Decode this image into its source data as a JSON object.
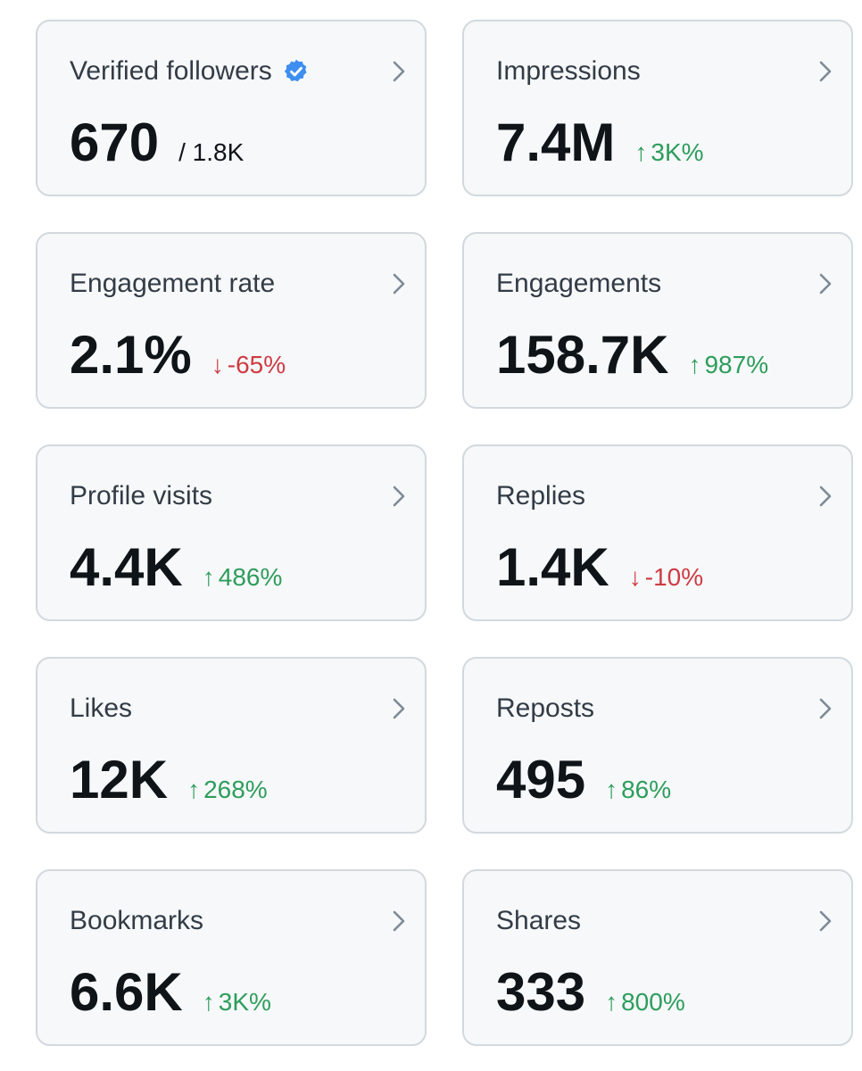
{
  "colors": {
    "card_bg": "#f6f8f9",
    "card_border": "#d2d9de",
    "title_text": "#333c46",
    "value_text": "#0f1419",
    "up": "#2e9d5c",
    "down": "#cf3b43",
    "verified": "#3d8ef0",
    "chevron": "#7d8a96"
  },
  "cards": [
    {
      "title": "Verified followers",
      "value": "670",
      "total": "/ 1.8K",
      "verified_icon": "verified-badge-icon"
    },
    {
      "title": "Impressions",
      "value": "7.4M",
      "direction": "up",
      "arrow": "↑",
      "change": "3K%"
    },
    {
      "title": "Engagement rate",
      "value": "2.1%",
      "direction": "down",
      "arrow": "↓",
      "change": "-65%"
    },
    {
      "title": "Engagements",
      "value": "158.7K",
      "direction": "up",
      "arrow": "↑",
      "change": "987%"
    },
    {
      "title": "Profile visits",
      "value": "4.4K",
      "direction": "up",
      "arrow": "↑",
      "change": "486%"
    },
    {
      "title": "Replies",
      "value": "1.4K",
      "direction": "down",
      "arrow": "↓",
      "change": "-10%"
    },
    {
      "title": "Likes",
      "value": "12K",
      "direction": "up",
      "arrow": "↑",
      "change": "268%"
    },
    {
      "title": "Reposts",
      "value": "495",
      "direction": "up",
      "arrow": "↑",
      "change": "86%"
    },
    {
      "title": "Bookmarks",
      "value": "6.6K",
      "direction": "up",
      "arrow": "↑",
      "change": "3K%"
    },
    {
      "title": "Shares",
      "value": "333",
      "direction": "up",
      "arrow": "↑",
      "change": "800%"
    }
  ]
}
